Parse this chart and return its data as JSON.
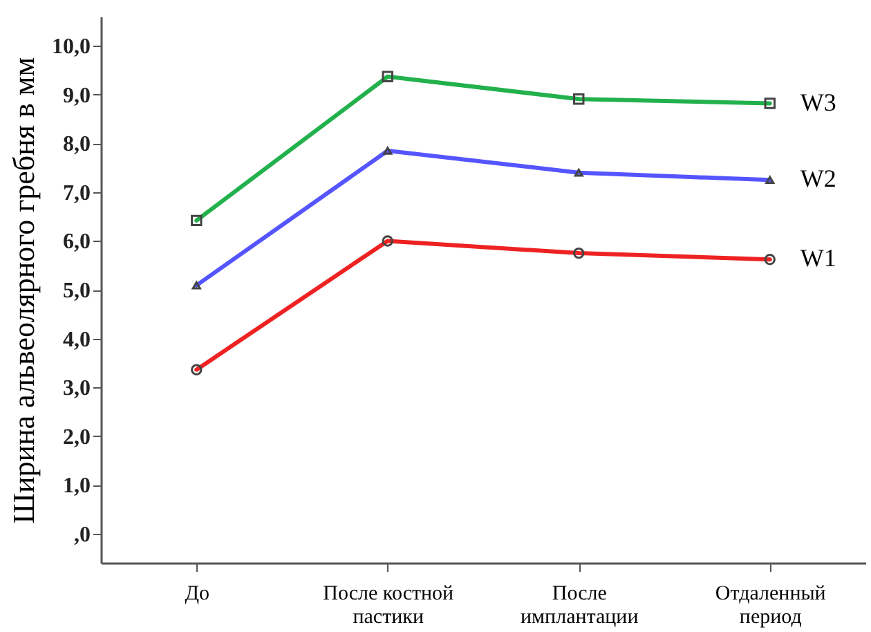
{
  "chart_data": {
    "type": "line",
    "ylabel": "Ширина альвеолярного гребня в мм",
    "categories": [
      "До",
      "После костной пастики",
      "После имплантации",
      "Отдаленный период"
    ],
    "ylim": [
      -0.6,
      10.6
    ],
    "yticks": [
      {
        "value": 0,
        "label": ",0"
      },
      {
        "value": 1,
        "label": "1,0"
      },
      {
        "value": 2,
        "label": "2,0"
      },
      {
        "value": 3,
        "label": "3,0"
      },
      {
        "value": 4,
        "label": "4,0"
      },
      {
        "value": 5,
        "label": "5,0"
      },
      {
        "value": 6,
        "label": "6,0"
      },
      {
        "value": 7,
        "label": "7,0"
      },
      {
        "value": 8,
        "label": "8,0"
      },
      {
        "value": 9,
        "label": "9,0"
      },
      {
        "value": 10,
        "label": "10,0"
      }
    ],
    "grid": false,
    "legend": false,
    "series": [
      {
        "name": "W1",
        "color": "#ee2222",
        "marker": "circle",
        "values": [
          3.36,
          6.0,
          5.75,
          5.62
        ]
      },
      {
        "name": "W2",
        "color": "#5555ff",
        "marker": "triangle",
        "values": [
          5.09,
          7.85,
          7.4,
          7.25
        ]
      },
      {
        "name": "W3",
        "color": "#22b14c",
        "marker": "square",
        "values": [
          6.42,
          9.37,
          8.91,
          8.82
        ]
      }
    ]
  }
}
